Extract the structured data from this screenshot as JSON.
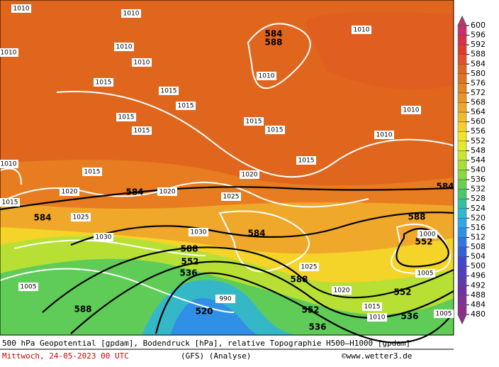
{
  "map": {
    "legend": {
      "ticks": [
        600,
        596,
        592,
        588,
        584,
        580,
        576,
        572,
        568,
        564,
        560,
        556,
        552,
        548,
        544,
        540,
        536,
        532,
        528,
        524,
        520,
        516,
        512,
        508,
        504,
        500,
        496,
        492,
        488,
        484,
        480
      ],
      "colors": [
        "#c8306e",
        "#d8304a",
        "#e03a30",
        "#e0502a",
        "#e06424",
        "#e0741e",
        "#e48422",
        "#e89426",
        "#eca82a",
        "#f0bc2a",
        "#f4d028",
        "#f4e424",
        "#e4ec2a",
        "#c8e830",
        "#a8e036",
        "#88d840",
        "#66d050",
        "#48c868",
        "#34c0a0",
        "#30b8d0",
        "#30a8e8",
        "#3090e8",
        "#3078e0",
        "#3460d8",
        "#4048d0",
        "#5040c0",
        "#6038b0",
        "#7030a0",
        "#803098",
        "#902c90"
      ]
    },
    "height_labels": [
      "584",
      "584",
      "584",
      "584",
      "588",
      "588",
      "588",
      "588",
      "552",
      "552",
      "552",
      "552",
      "536",
      "536",
      "536",
      "520",
      "584",
      "588"
    ],
    "pressure_labels": [
      "1010",
      "1010",
      "1010",
      "1010",
      "1010",
      "1010",
      "1010",
      "1015",
      "1015",
      "1015",
      "1015",
      "1015",
      "1015",
      "1015",
      "1015",
      "1015",
      "1020",
      "1020",
      "1020",
      "1025",
      "1025",
      "1025",
      "1030",
      "1030",
      "1005",
      "1005",
      "1015",
      "1010",
      "1015",
      "1020",
      "1010",
      "1010",
      "1010",
      "1005",
      "990",
      "1000"
    ],
    "footer": {
      "line1": "500 hPa Geopotential [gpdam], Bodendruck [hPa], relative Topographie H500–H1000 [gpdam]",
      "date": "Mittwoch, 24-05-2023  00 UTC",
      "model": "(GFS)  (Analyse)",
      "credit": "©www.wetter3.de"
    }
  }
}
